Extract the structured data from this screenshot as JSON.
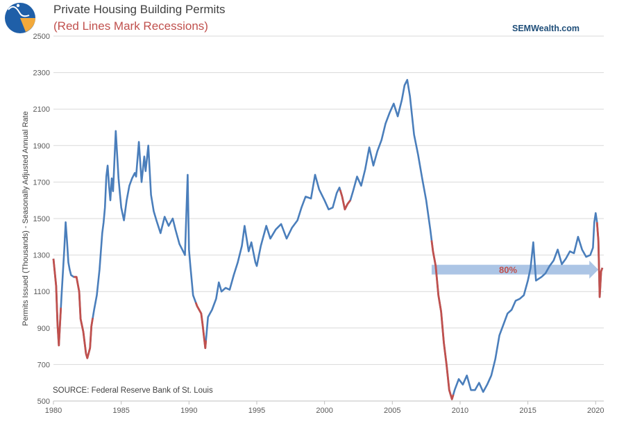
{
  "page": {
    "brand": "SEMWealth.com",
    "source": "SOURCE:   Federal Reserve Bank of St. Louis",
    "logo_icon": "semwealth-logo-icon"
  },
  "chart_data": {
    "type": "line",
    "title": "Private Housing Building Permits",
    "subtitle": "(Red Lines Mark Recessions)",
    "ylabel": "Permits Issued (Thousands) - Seasonally Adjusted Annual Rate",
    "xlabel": "",
    "xlim": [
      1980,
      2020.6
    ],
    "ylim": [
      500,
      2500
    ],
    "yticks": [
      500,
      700,
      900,
      1100,
      1300,
      1500,
      1700,
      1900,
      2100,
      2300,
      2500
    ],
    "xticks": [
      1980,
      1985,
      1990,
      1995,
      2000,
      2005,
      2010,
      2015,
      2020
    ],
    "grid": true,
    "colors": {
      "line": "#4a7ebb",
      "recession": "#c0504d",
      "arrow": "#9dbbe0",
      "grid": "#d9d9d9"
    },
    "annotation": {
      "text": "80%",
      "x_start": 2007.9,
      "x_end": 2020.2,
      "y": 1220
    },
    "x": [
      1980.0,
      1980.2,
      1980.3,
      1980.4,
      1980.6,
      1980.8,
      1980.9,
      1981.0,
      1981.1,
      1981.2,
      1981.3,
      1981.5,
      1981.7,
      1981.9,
      1982.0,
      1982.2,
      1982.4,
      1982.5,
      1982.7,
      1982.8,
      1983.0,
      1983.2,
      1983.4,
      1983.6,
      1983.7,
      1983.8,
      1983.9,
      1984.0,
      1984.1,
      1984.2,
      1984.3,
      1984.4,
      1984.6,
      1984.8,
      1984.9,
      1985.0,
      1985.2,
      1985.4,
      1985.6,
      1985.8,
      1986.0,
      1986.1,
      1986.3,
      1986.5,
      1986.7,
      1986.8,
      1987.0,
      1987.2,
      1987.4,
      1987.6,
      1987.9,
      1988.2,
      1988.5,
      1988.8,
      1989.0,
      1989.3,
      1989.5,
      1989.7,
      1989.9,
      1990.0,
      1990.1,
      1990.3,
      1990.6,
      1990.9,
      1991.0,
      1991.2,
      1991.4,
      1991.7,
      1992.0,
      1992.2,
      1992.4,
      1992.7,
      1993.0,
      1993.3,
      1993.6,
      1993.9,
      1994.1,
      1994.4,
      1994.6,
      1994.9,
      1995.0,
      1995.3,
      1995.7,
      1996.0,
      1996.4,
      1996.8,
      1997.2,
      1997.6,
      1998.0,
      1998.3,
      1998.6,
      1999.0,
      1999.3,
      1999.6,
      2000.0,
      2000.3,
      2000.6,
      2000.9,
      2001.1,
      2001.3,
      2001.5,
      2001.7,
      2001.9,
      2002.1,
      2002.4,
      2002.7,
      2003.0,
      2003.3,
      2003.6,
      2003.9,
      2004.2,
      2004.5,
      2004.8,
      2005.1,
      2005.4,
      2005.7,
      2005.9,
      2006.1,
      2006.3,
      2006.6,
      2006.9,
      2007.2,
      2007.5,
      2007.8,
      2008.0,
      2008.2,
      2008.4,
      2008.6,
      2008.8,
      2009.0,
      2009.2,
      2009.4,
      2009.6,
      2009.9,
      2010.2,
      2010.5,
      2010.8,
      2011.1,
      2011.4,
      2011.7,
      2012.0,
      2012.3,
      2012.6,
      2012.9,
      2013.2,
      2013.5,
      2013.8,
      2014.1,
      2014.4,
      2014.7,
      2015.0,
      2015.2,
      2015.4,
      2015.6,
      2015.8,
      2016.0,
      2016.3,
      2016.6,
      2016.9,
      2017.2,
      2017.5,
      2017.8,
      2018.1,
      2018.4,
      2018.7,
      2019.0,
      2019.3,
      2019.6,
      2019.8,
      2019.9,
      2020.0,
      2020.1,
      2020.2,
      2020.3,
      2020.4,
      2020.5
    ],
    "values": [
      1280,
      1130,
      920,
      805,
      1080,
      1330,
      1480,
      1380,
      1260,
      1220,
      1190,
      1180,
      1180,
      1100,
      950,
      880,
      760,
      735,
      790,
      910,
      1000,
      1080,
      1220,
      1420,
      1480,
      1560,
      1730,
      1790,
      1680,
      1600,
      1720,
      1650,
      1980,
      1720,
      1640,
      1560,
      1490,
      1600,
      1680,
      1720,
      1750,
      1730,
      1920,
      1700,
      1840,
      1760,
      1900,
      1630,
      1540,
      1490,
      1420,
      1510,
      1460,
      1500,
      1440,
      1360,
      1330,
      1300,
      1740,
      1330,
      1240,
      1080,
      1020,
      980,
      920,
      790,
      960,
      1000,
      1060,
      1150,
      1100,
      1120,
      1110,
      1190,
      1260,
      1350,
      1460,
      1320,
      1370,
      1260,
      1240,
      1350,
      1460,
      1390,
      1440,
      1470,
      1390,
      1450,
      1490,
      1560,
      1620,
      1610,
      1740,
      1660,
      1600,
      1550,
      1560,
      1640,
      1670,
      1620,
      1550,
      1580,
      1600,
      1650,
      1730,
      1680,
      1770,
      1890,
      1790,
      1870,
      1930,
      2020,
      2080,
      2130,
      2060,
      2150,
      2230,
      2260,
      2170,
      1960,
      1850,
      1720,
      1600,
      1440,
      1320,
      1240,
      1080,
      990,
      820,
      700,
      560,
      510,
      560,
      620,
      590,
      640,
      560,
      560,
      600,
      550,
      590,
      640,
      730,
      860,
      920,
      980,
      1000,
      1050,
      1060,
      1080,
      1160,
      1230,
      1370,
      1160,
      1170,
      1180,
      1200,
      1240,
      1270,
      1330,
      1250,
      1280,
      1320,
      1310,
      1400,
      1330,
      1290,
      1300,
      1340,
      1480,
      1530,
      1480,
      1380,
      1070,
      1210,
      1230
    ],
    "recessions": [
      [
        1980.0,
        1980.55
      ],
      [
        1981.5,
        1982.9
      ],
      [
        1990.5,
        1991.25
      ],
      [
        2001.15,
        2001.9
      ],
      [
        2007.9,
        2009.5
      ],
      [
        2020.1,
        2020.5
      ]
    ]
  }
}
